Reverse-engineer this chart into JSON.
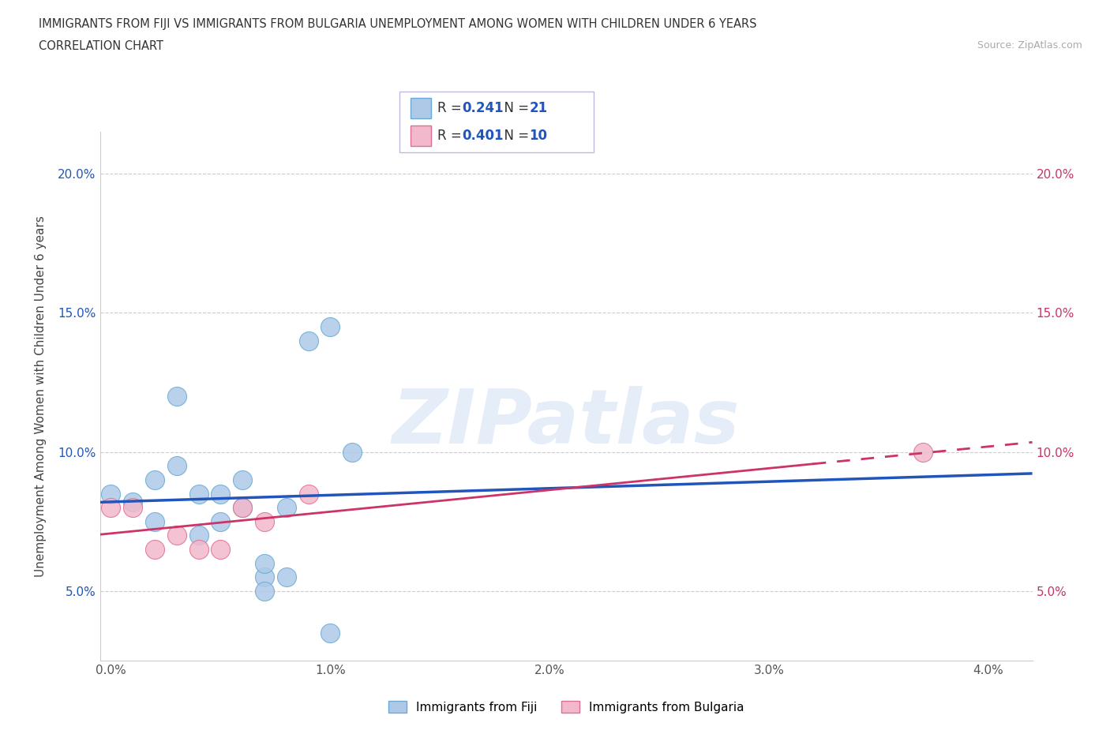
{
  "title_line1": "IMMIGRANTS FROM FIJI VS IMMIGRANTS FROM BULGARIA UNEMPLOYMENT AMONG WOMEN WITH CHILDREN UNDER 6 YEARS",
  "title_line2": "CORRELATION CHART",
  "source": "Source: ZipAtlas.com",
  "ylabel": "Unemployment Among Women with Children Under 6 years",
  "watermark": "ZIPatlas",
  "fiji_x": [
    0.0,
    0.001,
    0.002,
    0.002,
    0.003,
    0.003,
    0.004,
    0.004,
    0.005,
    0.005,
    0.006,
    0.006,
    0.007,
    0.007,
    0.007,
    0.008,
    0.008,
    0.009,
    0.01,
    0.01,
    0.011
  ],
  "fiji_y": [
    0.085,
    0.082,
    0.09,
    0.075,
    0.12,
    0.095,
    0.085,
    0.07,
    0.085,
    0.075,
    0.09,
    0.08,
    0.055,
    0.06,
    0.05,
    0.08,
    0.055,
    0.14,
    0.145,
    0.035,
    0.1
  ],
  "bulgaria_x": [
    0.0,
    0.001,
    0.002,
    0.003,
    0.004,
    0.005,
    0.006,
    0.007,
    0.009,
    0.037
  ],
  "bulgaria_y": [
    0.08,
    0.08,
    0.065,
    0.07,
    0.065,
    0.065,
    0.08,
    0.075,
    0.085,
    0.1
  ],
  "fiji_face_color": "#aec9e8",
  "fiji_edge_color": "#6aaad4",
  "fiji_line_color": "#2255bb",
  "fiji_R": 0.241,
  "fiji_N": 21,
  "bulgaria_face_color": "#f2b8cc",
  "bulgaria_edge_color": "#e07090",
  "bulgaria_line_color": "#cc3366",
  "bulgaria_R": 0.401,
  "bulgaria_N": 10,
  "xlim": [
    -0.0005,
    0.042
  ],
  "ylim": [
    0.025,
    0.215
  ],
  "yticks": [
    0.05,
    0.1,
    0.15,
    0.2
  ],
  "ytick_labels": [
    "5.0%",
    "10.0%",
    "15.0%",
    "20.0%"
  ],
  "xticks": [
    0.0,
    0.01,
    0.02,
    0.03,
    0.04
  ],
  "xtick_labels": [
    "0.0%",
    "1.0%",
    "2.0%",
    "3.0%",
    "4.0%"
  ],
  "legend_text_color": "#333399",
  "legend_label_color": "#333333"
}
